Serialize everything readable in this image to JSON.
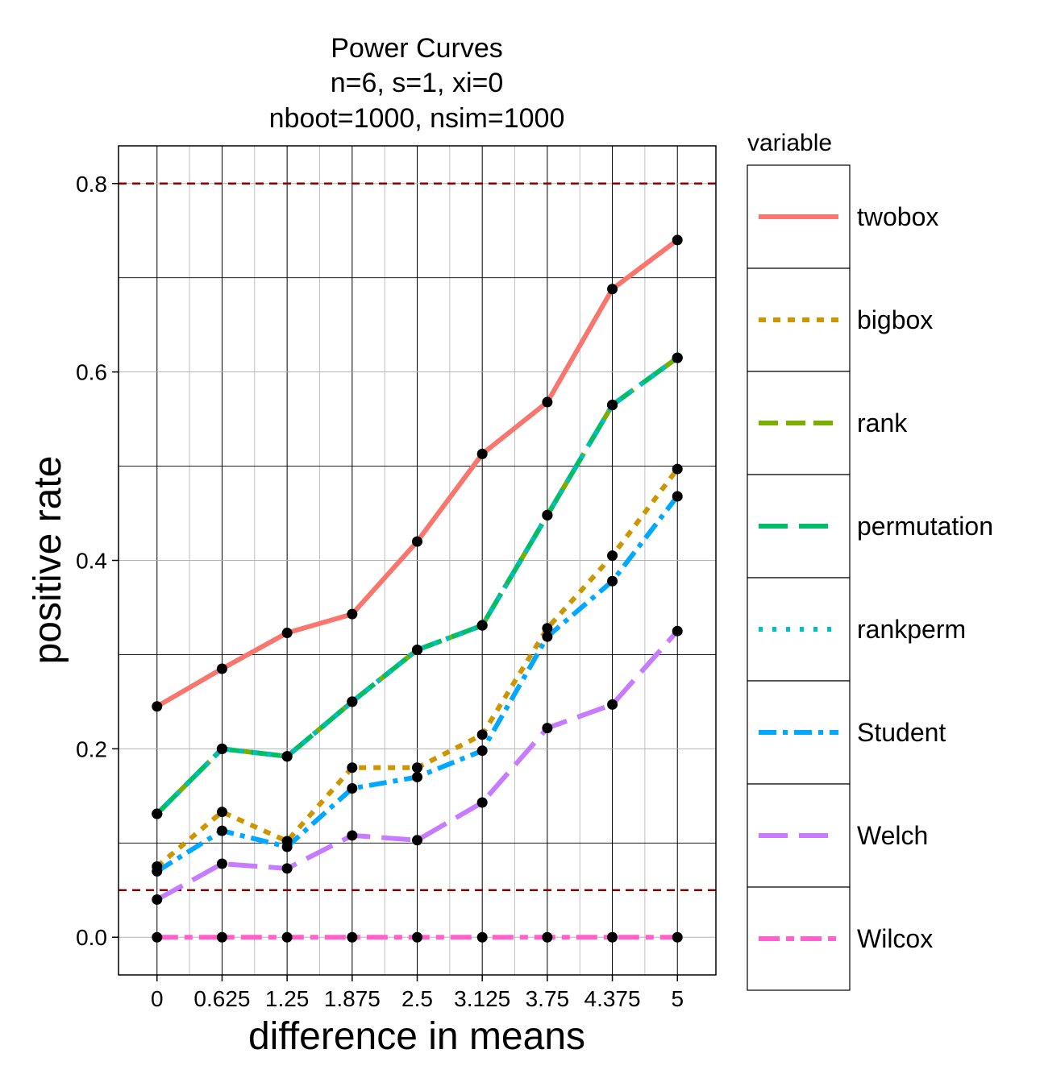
{
  "chart_data": {
    "type": "line",
    "title_lines": [
      "Power Curves",
      "n=6, s=1, xi=0",
      "nboot=1000, nsim=1000"
    ],
    "xlabel": "difference in means",
    "ylabel": "positive rate",
    "x_ticks": [
      "0",
      "0.625",
      "1.25",
      "1.875",
      "2.5",
      "3.125",
      "3.75",
      "4.375",
      "5"
    ],
    "x": [
      0,
      0.625,
      1.25,
      1.875,
      2.5,
      3.125,
      3.75,
      4.375,
      5
    ],
    "xlim": [
      -0.37,
      5.37
    ],
    "y_ticks": [
      "0.0",
      "0.2",
      "0.4",
      "0.6",
      "0.8"
    ],
    "y_tick_values": [
      0,
      0.2,
      0.4,
      0.6,
      0.8
    ],
    "ylim": [
      -0.04,
      0.84
    ],
    "grid": true,
    "reference_lines": [
      {
        "y": 0.8,
        "color": "#8b0000",
        "dash": "dashed"
      },
      {
        "y": 0.05,
        "color": "#8b0000",
        "dash": "dashed"
      }
    ],
    "legend": {
      "title": "variable",
      "placement": "right"
    },
    "series": [
      {
        "name": "twobox",
        "color": "#f8766d",
        "dash": "solid",
        "values": [
          0.245,
          0.285,
          0.323,
          0.343,
          0.42,
          0.513,
          0.568,
          0.688,
          0.74
        ]
      },
      {
        "name": "bigbox",
        "color": "#cd9600",
        "dash": "dotted",
        "values": [
          0.075,
          0.133,
          0.102,
          0.18,
          0.18,
          0.215,
          0.328,
          0.405,
          0.497
        ]
      },
      {
        "name": "rank",
        "color": "#7cae00",
        "dash": "dashed",
        "values": [
          0.131,
          0.2,
          0.192,
          0.25,
          0.305,
          0.331,
          0.448,
          0.565,
          0.615
        ]
      },
      {
        "name": "permutation",
        "color": "#00be67",
        "dash": "longdash",
        "values": [
          0.131,
          0.2,
          0.192,
          0.25,
          0.305,
          0.331,
          0.448,
          0.565,
          0.615
        ]
      },
      {
        "name": "rankperm",
        "color": "#00bfc4",
        "dash": "dotted-fine",
        "values": [
          0.131,
          0.2,
          0.192,
          0.25,
          0.305,
          0.331,
          0.448,
          0.565,
          0.615
        ]
      },
      {
        "name": "Student",
        "color": "#00a9ff",
        "dash": "dotdash",
        "values": [
          0.07,
          0.113,
          0.096,
          0.158,
          0.17,
          0.198,
          0.319,
          0.378,
          0.468
        ]
      },
      {
        "name": "Welch",
        "color": "#c77cff",
        "dash": "longdash",
        "values": [
          0.04,
          0.078,
          0.073,
          0.108,
          0.103,
          0.143,
          0.222,
          0.247,
          0.325
        ]
      },
      {
        "name": "Wilcox",
        "color": "#ff61cc",
        "dash": "twodash",
        "values": [
          0.0,
          0.0,
          0.0,
          0.0,
          0.0,
          0.0,
          0.0,
          0.0,
          0.0
        ]
      }
    ]
  }
}
